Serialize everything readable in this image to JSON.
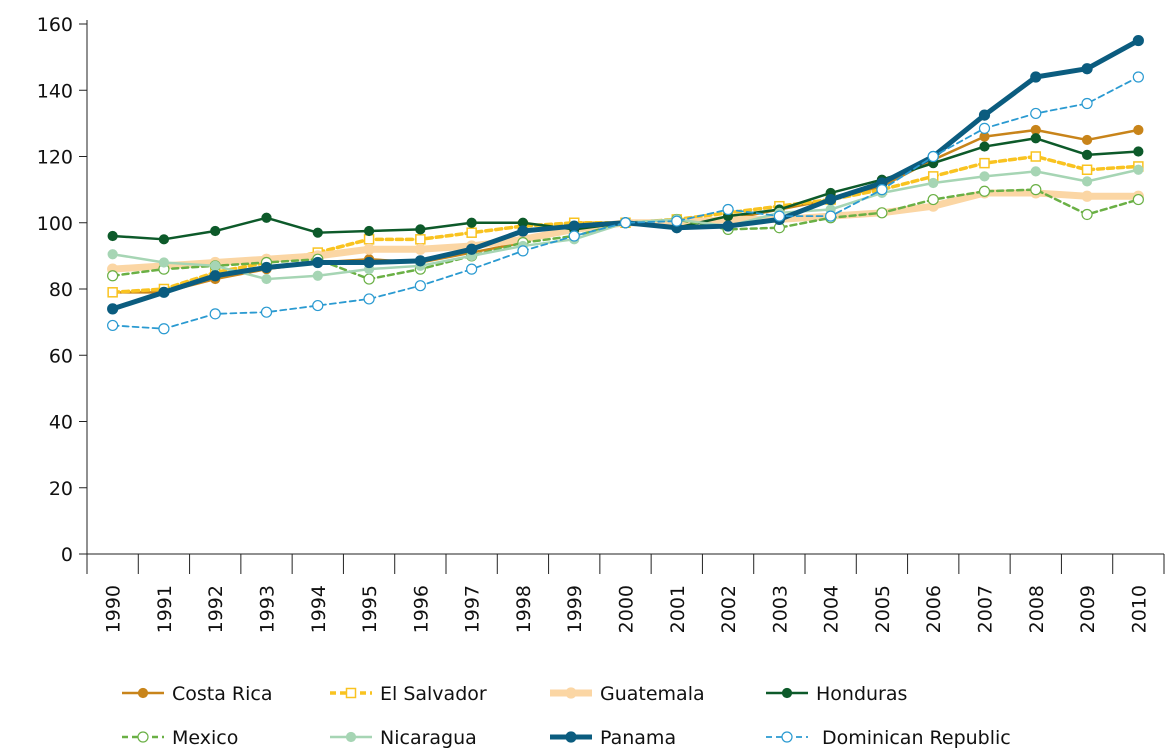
{
  "chart_data": {
    "type": "line",
    "categories": [
      "1990",
      "1991",
      "1992",
      "1993",
      "1994",
      "1995",
      "1996",
      "1997",
      "1998",
      "1999",
      "2000",
      "2001",
      "2002",
      "2003",
      "2004",
      "2005",
      "2006",
      "2007",
      "2008",
      "2009",
      "2010"
    ],
    "ylim": [
      0,
      160
    ],
    "yticks": [
      0,
      20,
      40,
      60,
      80,
      100,
      120,
      140,
      160
    ],
    "series": [
      {
        "name": "Costa Rica",
        "color": "#c8841a",
        "width": 2.5,
        "dashed": false,
        "marker": "circle",
        "values": [
          79,
          79,
          83,
          86,
          88,
          89,
          88,
          91,
          94,
          100,
          100,
          101,
          101,
          104,
          107,
          111,
          119,
          126,
          128,
          125,
          128
        ]
      },
      {
        "name": "El Salvador",
        "color": "#f9c320",
        "width": 3.5,
        "dashed": true,
        "marker": "open-square",
        "values": [
          79,
          80,
          85,
          88,
          91,
          95,
          95,
          97,
          99,
          100,
          100,
          101,
          103,
          105,
          107,
          110,
          114,
          118,
          120,
          116,
          117
        ]
      },
      {
        "name": "Guatemala",
        "color": "#fbd6a4",
        "width": 7,
        "dashed": false,
        "marker": "circle",
        "values": [
          86,
          87,
          88,
          89,
          90,
          92,
          92,
          93,
          95,
          98,
          100,
          100,
          101,
          101,
          102,
          103,
          105,
          109,
          109,
          108,
          108
        ]
      },
      {
        "name": "Honduras",
        "color": "#0d5a2a",
        "width": 2.5,
        "dashed": false,
        "marker": "circle",
        "values": [
          96,
          95,
          97.5,
          101.5,
          97,
          97.5,
          98,
          100,
          100,
          98,
          100,
          98.5,
          102,
          104,
          109,
          113,
          118,
          123,
          125.5,
          120.5,
          121.5
        ]
      },
      {
        "name": "Mexico",
        "color": "#6ab045",
        "width": 2.5,
        "dashed": true,
        "marker": "open-circle",
        "values": [
          84,
          86,
          87,
          88,
          89,
          83,
          86,
          90,
          94,
          96,
          100,
          101,
          98,
          98.5,
          101.5,
          103,
          107,
          109.5,
          110,
          102.5,
          107
        ]
      },
      {
        "name": "Nicaragua",
        "color": "#a6d5b4",
        "width": 2.5,
        "dashed": false,
        "marker": "circle",
        "values": [
          90.5,
          88,
          87,
          83,
          84,
          86,
          87,
          90,
          93,
          95,
          100,
          101,
          99,
          103,
          104,
          109,
          112,
          114,
          115.5,
          112.5,
          116
        ]
      },
      {
        "name": "Panama",
        "color": "#0b5c7f",
        "width": 5,
        "dashed": false,
        "marker": "circle",
        "values": [
          74,
          79,
          84,
          86.5,
          88,
          88,
          88.5,
          92,
          97.5,
          99,
          100,
          98.5,
          99,
          101,
          107,
          112,
          120,
          132.5,
          144,
          146.5,
          155
        ]
      },
      {
        "name": "Dominican Republic",
        "color": "#2a9ad1",
        "width": 1.8,
        "dashed": true,
        "marker": "open-circle",
        "values": [
          69,
          68,
          72.5,
          73,
          75,
          77,
          81,
          86,
          91.5,
          96,
          100,
          100.5,
          104,
          102,
          102,
          110,
          120,
          128.5,
          133,
          136,
          144
        ]
      }
    ]
  }
}
